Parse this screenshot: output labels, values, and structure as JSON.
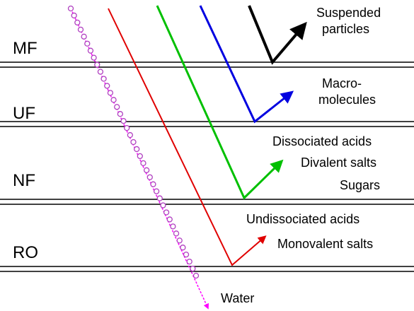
{
  "membranes": [
    "MF",
    "UF",
    "NF",
    "RO"
  ],
  "retained": [
    [
      "Suspended",
      "particles"
    ],
    [
      "Macro-",
      "molecules"
    ],
    [
      "Dissociated acids",
      "Divalent salts",
      "Sugars"
    ],
    [
      "Undissociated acids",
      "Monovalent salts"
    ]
  ],
  "permeate": "Water"
}
